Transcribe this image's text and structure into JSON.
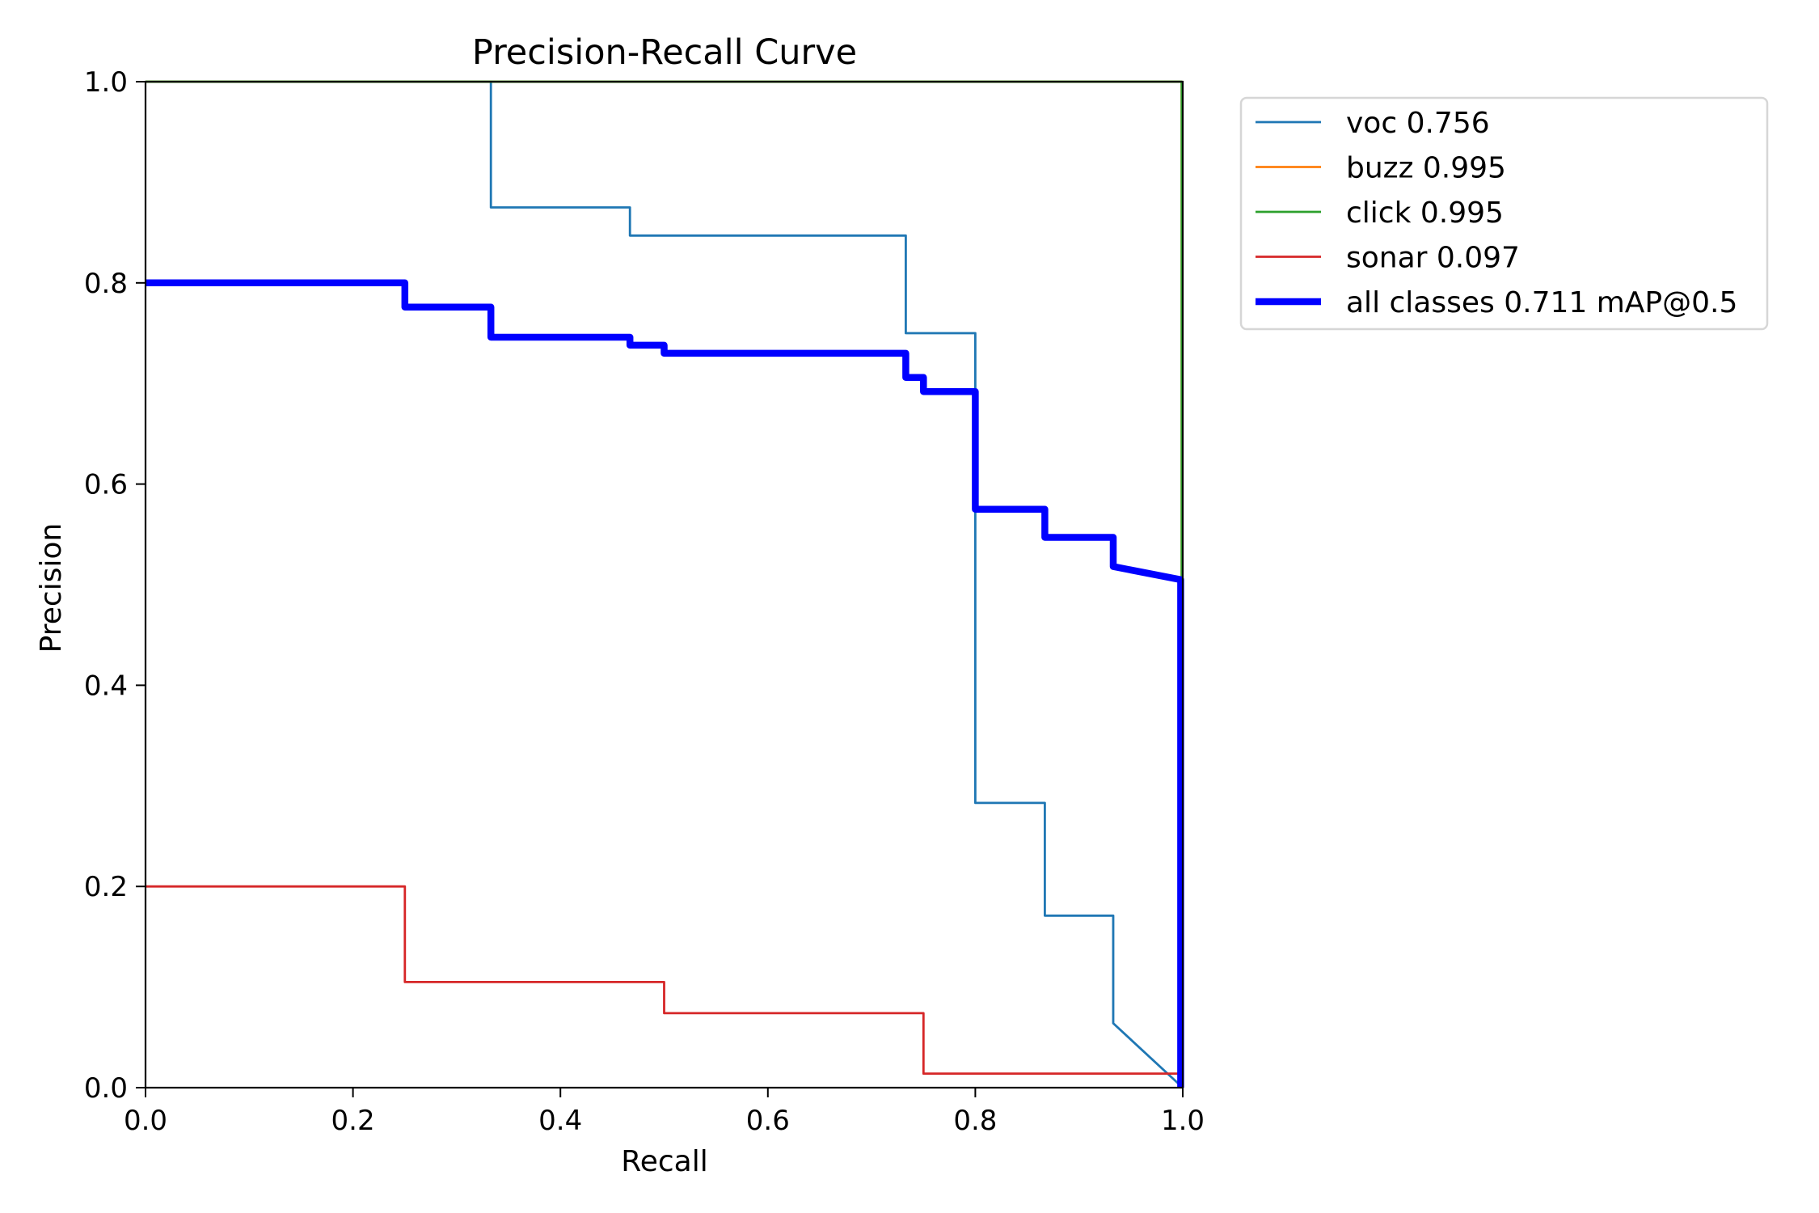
{
  "chart_data": {
    "type": "line",
    "title": "Precision-Recall Curve",
    "xlabel": "Recall",
    "ylabel": "Precision",
    "xlim": [
      0,
      1
    ],
    "ylim": [
      0,
      1
    ],
    "grid": false,
    "legend_placement": "outside-top-right",
    "xticks": [
      0.0,
      0.2,
      0.4,
      0.6,
      0.8,
      1.0
    ],
    "xtick_labels": [
      "0.0",
      "0.2",
      "0.4",
      "0.6",
      "0.8",
      "1.0"
    ],
    "yticks": [
      0.0,
      0.2,
      0.4,
      0.6,
      0.8,
      1.0
    ],
    "ytick_labels": [
      "0.0",
      "0.2",
      "0.4",
      "0.6",
      "0.8",
      "1.0"
    ],
    "series": [
      {
        "name": "voc",
        "legend_label": "voc 0.756",
        "ap": 0.756,
        "color": "#1f77b4",
        "emphasis": "thin",
        "points": [
          [
            0.0,
            1.0
          ],
          [
            0.333,
            1.0
          ],
          [
            0.333,
            0.875
          ],
          [
            0.467,
            0.875
          ],
          [
            0.467,
            0.847
          ],
          [
            0.733,
            0.847
          ],
          [
            0.733,
            0.75
          ],
          [
            0.8,
            0.75
          ],
          [
            0.8,
            0.283
          ],
          [
            0.867,
            0.283
          ],
          [
            0.867,
            0.171
          ],
          [
            0.933,
            0.171
          ],
          [
            0.933,
            0.064
          ],
          [
            1.0,
            0.0
          ]
        ]
      },
      {
        "name": "buzz",
        "legend_label": "buzz 0.995",
        "ap": 0.995,
        "color": "#ff7f0e",
        "emphasis": "thin",
        "points": [
          [
            0.0,
            1.0
          ],
          [
            0.999,
            1.0
          ],
          [
            0.999,
            0.0
          ]
        ]
      },
      {
        "name": "click",
        "legend_label": "click 0.995",
        "ap": 0.995,
        "color": "#2ca02c",
        "emphasis": "thin",
        "points": [
          [
            0.0,
            1.0
          ],
          [
            0.999,
            1.0
          ],
          [
            0.999,
            0.0
          ]
        ]
      },
      {
        "name": "sonar",
        "legend_label": "sonar 0.097",
        "ap": 0.097,
        "color": "#d62728",
        "emphasis": "thin",
        "points": [
          [
            0.0,
            0.2
          ],
          [
            0.25,
            0.2
          ],
          [
            0.25,
            0.105
          ],
          [
            0.5,
            0.105
          ],
          [
            0.5,
            0.074
          ],
          [
            0.75,
            0.074
          ],
          [
            0.75,
            0.014
          ],
          [
            1.0,
            0.014
          ]
        ]
      },
      {
        "name": "all classes",
        "legend_label": "all classes 0.711 mAP@0.5",
        "ap": 0.711,
        "color": "#0000ff",
        "emphasis": "thick",
        "points": [
          [
            0.0,
            0.8
          ],
          [
            0.25,
            0.8
          ],
          [
            0.25,
            0.776
          ],
          [
            0.333,
            0.776
          ],
          [
            0.333,
            0.746
          ],
          [
            0.467,
            0.746
          ],
          [
            0.467,
            0.738
          ],
          [
            0.5,
            0.738
          ],
          [
            0.5,
            0.73
          ],
          [
            0.733,
            0.73
          ],
          [
            0.733,
            0.706
          ],
          [
            0.75,
            0.706
          ],
          [
            0.75,
            0.692
          ],
          [
            0.8,
            0.692
          ],
          [
            0.8,
            0.575
          ],
          [
            0.867,
            0.575
          ],
          [
            0.867,
            0.547
          ],
          [
            0.933,
            0.547
          ],
          [
            0.933,
            0.518
          ],
          [
            0.998,
            0.505
          ],
          [
            0.998,
            0.0
          ]
        ]
      }
    ]
  }
}
